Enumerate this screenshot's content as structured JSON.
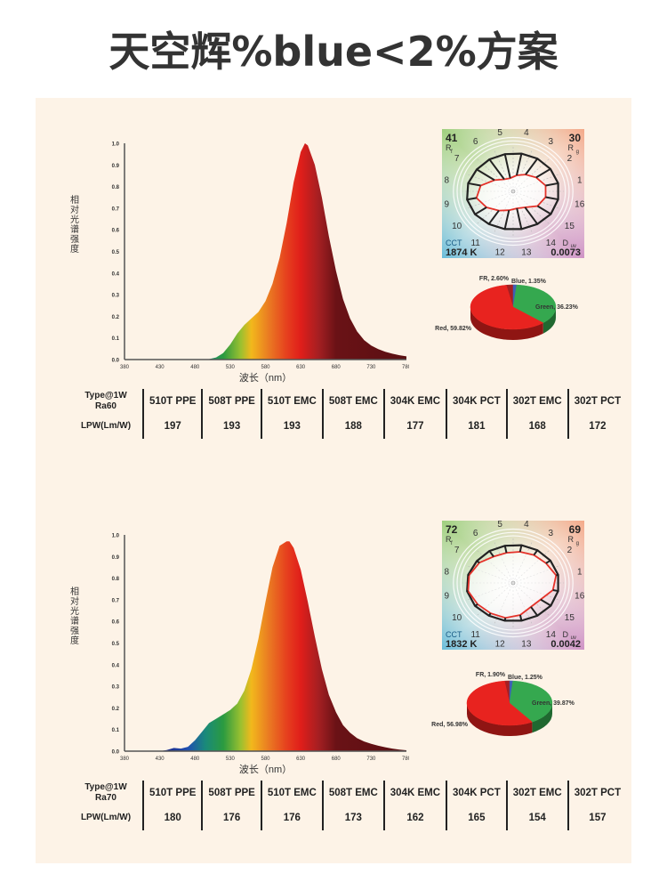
{
  "page": {
    "title": "天空辉%blue<2%方案"
  },
  "chart_data": [
    {
      "type": "area",
      "id": "spectrum-ra60",
      "title": "",
      "xlabel": "波长（nm）",
      "ylabel": "相对光谱强度",
      "xlim": [
        380,
        780
      ],
      "ylim": [
        0,
        1.0
      ],
      "x_ticks": [
        "380",
        "430",
        "480",
        "530",
        "580",
        "630",
        "680",
        "730",
        "780"
      ],
      "y_ticks": [
        "0.0",
        "0.1",
        "0.2",
        "0.3",
        "0.4",
        "0.5",
        "0.6",
        "0.7",
        "0.8",
        "0.9",
        "1.0"
      ],
      "grid": false,
      "x": [
        380,
        480,
        500,
        510,
        520,
        530,
        540,
        550,
        560,
        570,
        580,
        590,
        600,
        610,
        620,
        630,
        636,
        640,
        650,
        660,
        670,
        680,
        690,
        700,
        710,
        720,
        730,
        740,
        750,
        760,
        770,
        780
      ],
      "values": [
        0,
        0,
        0.002,
        0.01,
        0.03,
        0.07,
        0.12,
        0.16,
        0.19,
        0.22,
        0.27,
        0.35,
        0.47,
        0.63,
        0.82,
        0.96,
        1.0,
        0.99,
        0.9,
        0.75,
        0.57,
        0.41,
        0.28,
        0.19,
        0.13,
        0.09,
        0.065,
        0.048,
        0.036,
        0.027,
        0.02,
        0.015
      ]
    },
    {
      "type": "area",
      "id": "spectrum-ra70",
      "title": "",
      "xlabel": "波长（nm）",
      "ylabel": "相对光谱强度",
      "xlim": [
        380,
        780
      ],
      "ylim": [
        0,
        1.0
      ],
      "x_ticks": [
        "380",
        "430",
        "480",
        "530",
        "580",
        "630",
        "680",
        "730",
        "780"
      ],
      "y_ticks": [
        "0.0",
        "0.1",
        "0.2",
        "0.3",
        "0.4",
        "0.5",
        "0.6",
        "0.7",
        "0.8",
        "0.9",
        "1.0"
      ],
      "grid": false,
      "x": [
        380,
        430,
        440,
        450,
        460,
        470,
        480,
        490,
        500,
        510,
        520,
        530,
        540,
        550,
        560,
        570,
        580,
        590,
        600,
        610,
        614,
        620,
        630,
        640,
        650,
        660,
        670,
        680,
        690,
        700,
        710,
        720,
        730,
        740,
        750,
        760,
        770,
        780
      ],
      "values": [
        0,
        0,
        0.005,
        0.015,
        0.012,
        0.02,
        0.05,
        0.09,
        0.13,
        0.15,
        0.17,
        0.19,
        0.22,
        0.28,
        0.38,
        0.52,
        0.69,
        0.85,
        0.95,
        0.97,
        0.97,
        0.94,
        0.84,
        0.69,
        0.53,
        0.38,
        0.26,
        0.18,
        0.12,
        0.085,
        0.06,
        0.045,
        0.034,
        0.025,
        0.018,
        0.012,
        0.007,
        0.004
      ]
    },
    {
      "type": "pie",
      "id": "color-ratio-ra60",
      "labels": [
        "Red",
        "Green",
        "Blue",
        "FR"
      ],
      "values": [
        59.82,
        36.23,
        1.35,
        2.6
      ],
      "display_labels": [
        "Red, 59.82%",
        "Green, 36.23%",
        "Blue, 1.35%",
        "FR, 2.60%"
      ],
      "colors": [
        "#e8231f",
        "#35a84f",
        "#3f5fb4",
        "#a51f22"
      ]
    },
    {
      "type": "pie",
      "id": "color-ratio-ra70",
      "labels": [
        "Red",
        "Green",
        "Blue",
        "FR"
      ],
      "values": [
        56.98,
        39.87,
        1.25,
        1.9
      ],
      "display_labels": [
        "Red, 56.98%",
        "Green, 39.87%",
        "Blue, 1.25%",
        "FR, 1.90%"
      ],
      "colors": [
        "#e8231f",
        "#35a84f",
        "#3f5fb4",
        "#a51f22"
      ]
    },
    {
      "type": "radar",
      "id": "cri-ra60",
      "axis_labels": [
        "1",
        "2",
        "3",
        "4",
        "5",
        "6",
        "7",
        "8",
        "9",
        "10",
        "11",
        "12",
        "13",
        "14",
        "15",
        "16"
      ],
      "rf_label": "R",
      "rf_sub": "f",
      "rf_value": "41",
      "rg_label": "R",
      "rg_sub": "g",
      "rg_value": "30",
      "cct_label": "CCT",
      "cct_value": "1874 K",
      "duv_label": "D",
      "duv_sub": "uv",
      "duv_value": "0.0073",
      "reference_radius": [
        0.86,
        0.84,
        0.82,
        0.8,
        0.79,
        0.8,
        0.82,
        0.86,
        0.88,
        0.86,
        0.82,
        0.8,
        0.8,
        0.82,
        0.85,
        0.86
      ],
      "test_radius": [
        0.62,
        0.52,
        0.42,
        0.34,
        0.28,
        0.3,
        0.42,
        0.62,
        0.7,
        0.6,
        0.48,
        0.4,
        0.36,
        0.4,
        0.55,
        0.62
      ]
    },
    {
      "type": "radar",
      "id": "cri-ra70",
      "axis_labels": [
        "1",
        "2",
        "3",
        "4",
        "5",
        "6",
        "7",
        "8",
        "9",
        "10",
        "11",
        "12",
        "13",
        "14",
        "15",
        "16"
      ],
      "rf_label": "R",
      "rf_sub": "f",
      "rf_value": "72",
      "rg_label": "R",
      "rg_sub": "g",
      "rg_value": "69",
      "cct_label": "CCT",
      "cct_value": "1832 K",
      "duv_label": "D",
      "duv_sub": "uv",
      "duv_value": "0.0042",
      "reference_radius": [
        0.86,
        0.84,
        0.82,
        0.8,
        0.79,
        0.8,
        0.82,
        0.86,
        0.88,
        0.86,
        0.82,
        0.8,
        0.8,
        0.82,
        0.85,
        0.86
      ],
      "test_radius": [
        0.82,
        0.74,
        0.7,
        0.66,
        0.64,
        0.66,
        0.76,
        0.84,
        0.86,
        0.8,
        0.76,
        0.74,
        0.68,
        0.6,
        0.62,
        0.76
      ]
    }
  ],
  "tables": [
    {
      "row_header_type": "Type@1W",
      "row_header_ra": "Ra60",
      "row_header_lpw": "LPW(Lm/W)",
      "columns": [
        "510T PPE",
        "508T PPE",
        "510T EMC",
        "508T EMC",
        "304K EMC",
        "304K PCT",
        "302T EMC",
        "302T PCT"
      ],
      "lpw": [
        "197",
        "193",
        "193",
        "188",
        "177",
        "181",
        "168",
        "172"
      ]
    },
    {
      "row_header_type": "Type@1W",
      "row_header_ra": "Ra70",
      "row_header_lpw": "LPW(Lm/W)",
      "columns": [
        "510T PPE",
        "508T PPE",
        "510T EMC",
        "508T EMC",
        "304K EMC",
        "304K PCT",
        "302T EMC",
        "302T PCT"
      ],
      "lpw": [
        "180",
        "176",
        "176",
        "173",
        "162",
        "165",
        "154",
        "157"
      ]
    }
  ]
}
